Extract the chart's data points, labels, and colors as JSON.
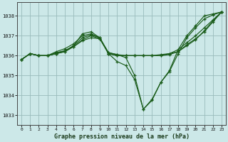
{
  "title": "Graphe pression niveau de la mer (hPa)",
  "background_color": "#cce8e8",
  "grid_color": "#99bbbb",
  "line_color": "#1a5c1a",
  "xlim": [
    -0.5,
    23.5
  ],
  "ylim": [
    1032.5,
    1038.7
  ],
  "yticks": [
    1033,
    1034,
    1035,
    1036,
    1037,
    1038
  ],
  "xticks": [
    0,
    1,
    2,
    3,
    4,
    5,
    6,
    7,
    8,
    9,
    10,
    11,
    12,
    13,
    14,
    15,
    16,
    17,
    18,
    19,
    20,
    21,
    22,
    23
  ],
  "series": [
    [
      1035.8,
      1036.1,
      1036.0,
      1036.0,
      1036.1,
      1036.2,
      1036.5,
      1037.1,
      1037.2,
      1036.9,
      1036.1,
      1035.7,
      1035.5,
      1034.8,
      1033.3,
      1033.75,
      1034.65,
      1035.25,
      1036.3,
      1037.0,
      1037.5,
      1038.0,
      1038.1,
      1038.2
    ],
    [
      1035.8,
      1036.1,
      1036.0,
      1036.0,
      1036.1,
      1036.2,
      1036.45,
      1036.8,
      1037.0,
      1036.85,
      1036.15,
      1036.05,
      1036.0,
      1036.0,
      1036.0,
      1036.0,
      1036.0,
      1036.1,
      1036.2,
      1036.55,
      1036.85,
      1037.2,
      1037.7,
      1038.2
    ],
    [
      1035.8,
      1036.1,
      1036.0,
      1036.0,
      1036.2,
      1036.35,
      1036.6,
      1037.0,
      1037.1,
      1036.9,
      1036.15,
      1036.05,
      1035.9,
      1035.0,
      1033.3,
      1033.8,
      1034.65,
      1035.2,
      1036.1,
      1036.9,
      1037.4,
      1037.85,
      1038.05,
      1038.2
    ],
    [
      1035.8,
      1036.1,
      1036.0,
      1036.0,
      1036.15,
      1036.25,
      1036.5,
      1036.9,
      1037.05,
      1036.9,
      1036.1,
      1036.0,
      1036.0,
      1036.0,
      1036.0,
      1036.0,
      1036.05,
      1036.1,
      1036.3,
      1036.65,
      1037.0,
      1037.4,
      1037.8,
      1038.2
    ],
    [
      1035.8,
      1036.1,
      1036.0,
      1036.0,
      1036.1,
      1036.25,
      1036.45,
      1036.75,
      1036.9,
      1036.85,
      1036.1,
      1036.0,
      1036.0,
      1036.0,
      1036.0,
      1036.0,
      1036.0,
      1036.05,
      1036.2,
      1036.5,
      1036.8,
      1037.25,
      1037.75,
      1038.2
    ]
  ]
}
